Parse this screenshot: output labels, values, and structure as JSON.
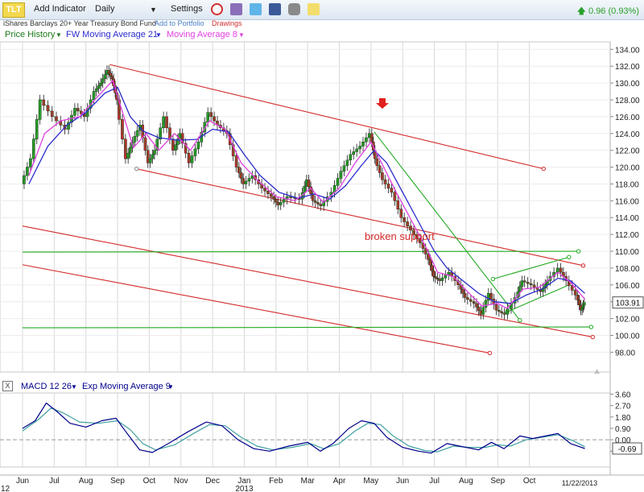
{
  "toolbar": {
    "symbol": "TLT",
    "add_indicator": "Add Indicator",
    "interval": "Daily",
    "settings": "Settings",
    "icons": [
      "alarm-clock-icon",
      "book-icon",
      "twitter-icon",
      "facebook-icon",
      "camera-icon",
      "note-icon"
    ],
    "change_text": "0.96 (0.93%)",
    "change_color": "#2aa02a"
  },
  "subbar": {
    "fund_name": "iShares Barclays 20+ Year Treasury Bond Fund",
    "add_to_portfolio": "Add to Portfolio",
    "drawings": "Drawings"
  },
  "legend": {
    "price_history": "Price History",
    "ma21": "FW Moving Average 21",
    "ma8": "Moving Average 8"
  },
  "macd_legend": {
    "macd": "MACD 12 26",
    "signal": "Exp Moving Average 9",
    "close_symbol": "X"
  },
  "chart_data": {
    "type": "line",
    "price_axis": {
      "ylim": [
        97,
        135
      ],
      "ticks": [
        98,
        100,
        102,
        104,
        106,
        108,
        110,
        112,
        114,
        116,
        118,
        120,
        122,
        124,
        126,
        128,
        130,
        132,
        134
      ]
    },
    "tick_labels": [
      "98.00",
      "100.00",
      "102.00",
      "104.00",
      "106.00",
      "108.00",
      "110.00",
      "112.00",
      "114.00",
      "116.00",
      "118.00",
      "120.00",
      "122.00",
      "124.00",
      "126.00",
      "128.00",
      "130.00",
      "132.00",
      "134.00"
    ],
    "last_price": "103.91",
    "months": [
      "Jun",
      "Jul",
      "Aug",
      "Sep",
      "Oct",
      "Nov",
      "Dec",
      "Jan",
      "Feb",
      "Mar",
      "Apr",
      "May",
      "Jun",
      "Jul",
      "Aug",
      "Sep",
      "Oct"
    ],
    "year_label": "2013",
    "left_edge_label": "12",
    "end_date": "11/22/2013",
    "annotation": "broken support",
    "price_series": [
      {
        "x": 0,
        "y": 118
      },
      {
        "x": 0.3,
        "y": 121
      },
      {
        "x": 0.6,
        "y": 128
      },
      {
        "x": 1,
        "y": 126
      },
      {
        "x": 1.4,
        "y": 124.5
      },
      {
        "x": 1.7,
        "y": 127
      },
      {
        "x": 2,
        "y": 126
      },
      {
        "x": 2.3,
        "y": 129
      },
      {
        "x": 2.5,
        "y": 130
      },
      {
        "x": 2.7,
        "y": 131.5
      },
      {
        "x": 2.85,
        "y": 130.5
      },
      {
        "x": 3,
        "y": 128
      },
      {
        "x": 3.3,
        "y": 121
      },
      {
        "x": 3.5,
        "y": 123
      },
      {
        "x": 3.75,
        "y": 125
      },
      {
        "x": 4,
        "y": 120.5
      },
      {
        "x": 4.2,
        "y": 122
      },
      {
        "x": 4.5,
        "y": 126
      },
      {
        "x": 4.8,
        "y": 122
      },
      {
        "x": 5,
        "y": 124
      },
      {
        "x": 5.3,
        "y": 120.5
      },
      {
        "x": 5.6,
        "y": 123
      },
      {
        "x": 5.9,
        "y": 126.5
      },
      {
        "x": 6.2,
        "y": 125
      },
      {
        "x": 6.5,
        "y": 124
      },
      {
        "x": 6.8,
        "y": 120
      },
      {
        "x": 7,
        "y": 118
      },
      {
        "x": 7.3,
        "y": 119
      },
      {
        "x": 7.6,
        "y": 117.5
      },
      {
        "x": 7.9,
        "y": 116.5
      },
      {
        "x": 8.1,
        "y": 115.5
      },
      {
        "x": 8.4,
        "y": 116.5
      },
      {
        "x": 8.8,
        "y": 116.2
      },
      {
        "x": 9,
        "y": 118.5
      },
      {
        "x": 9.2,
        "y": 116
      },
      {
        "x": 9.45,
        "y": 115.4
      },
      {
        "x": 9.8,
        "y": 117
      },
      {
        "x": 10.1,
        "y": 119.5
      },
      {
        "x": 10.4,
        "y": 121.5
      },
      {
        "x": 10.7,
        "y": 122.5
      },
      {
        "x": 11,
        "y": 124
      },
      {
        "x": 11.15,
        "y": 121
      },
      {
        "x": 11.4,
        "y": 118.5
      },
      {
        "x": 11.7,
        "y": 117
      },
      {
        "x": 12,
        "y": 114
      },
      {
        "x": 12.3,
        "y": 112.5
      },
      {
        "x": 12.6,
        "y": 111
      },
      {
        "x": 12.85,
        "y": 109
      },
      {
        "x": 13,
        "y": 107
      },
      {
        "x": 13.2,
        "y": 106.5
      },
      {
        "x": 13.5,
        "y": 107.5
      },
      {
        "x": 13.8,
        "y": 106
      },
      {
        "x": 14,
        "y": 104.5
      },
      {
        "x": 14.3,
        "y": 103.8
      },
      {
        "x": 14.5,
        "y": 102.5
      },
      {
        "x": 14.75,
        "y": 105
      },
      {
        "x": 15,
        "y": 103
      },
      {
        "x": 15.25,
        "y": 102.5
      },
      {
        "x": 15.6,
        "y": 104.5
      },
      {
        "x": 15.8,
        "y": 106.5
      },
      {
        "x": 16.1,
        "y": 106
      },
      {
        "x": 16.4,
        "y": 105.2
      },
      {
        "x": 16.6,
        "y": 106.5
      },
      {
        "x": 16.95,
        "y": 108
      },
      {
        "x": 17.2,
        "y": 106.5
      },
      {
        "x": 17.5,
        "y": 104.8
      },
      {
        "x": 17.65,
        "y": 103
      },
      {
        "x": 17.75,
        "y": 103.9
      }
    ],
    "ma8_series": [
      {
        "x": 0.2,
        "y": 119
      },
      {
        "x": 0.7,
        "y": 124
      },
      {
        "x": 1.2,
        "y": 125.5
      },
      {
        "x": 1.8,
        "y": 126
      },
      {
        "x": 2.4,
        "y": 128.5
      },
      {
        "x": 2.85,
        "y": 130.3
      },
      {
        "x": 3.2,
        "y": 126
      },
      {
        "x": 3.5,
        "y": 122.3
      },
      {
        "x": 3.9,
        "y": 124
      },
      {
        "x": 4.3,
        "y": 122
      },
      {
        "x": 4.8,
        "y": 124
      },
      {
        "x": 5.3,
        "y": 122
      },
      {
        "x": 5.9,
        "y": 125.5
      },
      {
        "x": 6.4,
        "y": 124.5
      },
      {
        "x": 6.9,
        "y": 120.5
      },
      {
        "x": 7.4,
        "y": 118.5
      },
      {
        "x": 8,
        "y": 116.5
      },
      {
        "x": 8.6,
        "y": 116
      },
      {
        "x": 9.1,
        "y": 117.5
      },
      {
        "x": 9.5,
        "y": 115.8
      },
      {
        "x": 10,
        "y": 117.5
      },
      {
        "x": 10.5,
        "y": 120.5
      },
      {
        "x": 11,
        "y": 123
      },
      {
        "x": 11.4,
        "y": 120
      },
      {
        "x": 11.8,
        "y": 117
      },
      {
        "x": 12.3,
        "y": 113.5
      },
      {
        "x": 12.8,
        "y": 110
      },
      {
        "x": 13.1,
        "y": 107.5
      },
      {
        "x": 13.6,
        "y": 107
      },
      {
        "x": 14.1,
        "y": 105
      },
      {
        "x": 14.5,
        "y": 103.5
      },
      {
        "x": 15,
        "y": 103.8
      },
      {
        "x": 15.3,
        "y": 103.2
      },
      {
        "x": 15.8,
        "y": 105.5
      },
      {
        "x": 16.3,
        "y": 105.7
      },
      {
        "x": 16.9,
        "y": 107.5
      },
      {
        "x": 17.3,
        "y": 106.3
      },
      {
        "x": 17.75,
        "y": 104.3
      }
    ],
    "ma21_series": [
      {
        "x": 0.2,
        "y": 118
      },
      {
        "x": 0.8,
        "y": 122.5
      },
      {
        "x": 1.4,
        "y": 125
      },
      {
        "x": 2,
        "y": 126.5
      },
      {
        "x": 2.6,
        "y": 128.8
      },
      {
        "x": 3,
        "y": 129.5
      },
      {
        "x": 3.4,
        "y": 126
      },
      {
        "x": 3.8,
        "y": 124.3
      },
      {
        "x": 4.3,
        "y": 123.5
      },
      {
        "x": 4.9,
        "y": 123.2
      },
      {
        "x": 5.5,
        "y": 123.3
      },
      {
        "x": 6,
        "y": 124.5
      },
      {
        "x": 6.5,
        "y": 124.2
      },
      {
        "x": 7,
        "y": 121.5
      },
      {
        "x": 7.5,
        "y": 119
      },
      {
        "x": 8.1,
        "y": 117
      },
      {
        "x": 8.7,
        "y": 116.3
      },
      {
        "x": 9.2,
        "y": 116.8
      },
      {
        "x": 9.7,
        "y": 116.2
      },
      {
        "x": 10.2,
        "y": 117.8
      },
      {
        "x": 10.7,
        "y": 120.2
      },
      {
        "x": 11.1,
        "y": 122
      },
      {
        "x": 11.5,
        "y": 120.5
      },
      {
        "x": 12,
        "y": 117
      },
      {
        "x": 12.5,
        "y": 113.5
      },
      {
        "x": 13,
        "y": 110
      },
      {
        "x": 13.4,
        "y": 108
      },
      {
        "x": 13.9,
        "y": 106.5
      },
      {
        "x": 14.4,
        "y": 105
      },
      {
        "x": 14.9,
        "y": 104
      },
      {
        "x": 15.4,
        "y": 103.8
      },
      {
        "x": 15.9,
        "y": 104.8
      },
      {
        "x": 16.4,
        "y": 105.5
      },
      {
        "x": 16.9,
        "y": 106.8
      },
      {
        "x": 17.3,
        "y": 106.5
      },
      {
        "x": 17.75,
        "y": 105
      }
    ],
    "trendlines": [
      {
        "color": "#d42a2a",
        "x1": 2.75,
        "y1": 132.2,
        "x2": 16.45,
        "y2": 119.8,
        "end_marker": true
      },
      {
        "color": "#d42a2a",
        "x1": 3.6,
        "y1": 119.8,
        "x2": 17.7,
        "y2": 108.3,
        "end_marker": true
      },
      {
        "color": "#d42a2a",
        "x1": 0,
        "y1": 113,
        "x2": 18,
        "y2": 99.8,
        "end_marker": true
      },
      {
        "color": "#d42a2a",
        "x1": 0,
        "y1": 108.4,
        "x2": 14.75,
        "y2": 97.9,
        "end_marker": true
      },
      {
        "color": "#22aa22",
        "x1": 0,
        "y1": 109.9,
        "x2": 17.55,
        "y2": 110,
        "end_marker": true
      },
      {
        "color": "#22aa22",
        "x1": 0,
        "y1": 100.9,
        "x2": 17.95,
        "y2": 101,
        "end_marker": true
      },
      {
        "color": "#22aa22",
        "x1": 11.1,
        "y1": 124.2,
        "x2": 15.7,
        "y2": 101.8,
        "end_marker": true
      },
      {
        "color": "#22aa22",
        "x1": 14.85,
        "y1": 106.7,
        "x2": 17.25,
        "y2": 109.3,
        "end_marker": true
      },
      {
        "color": "#22aa22",
        "x1": 15.3,
        "y1": 102.8,
        "x2": 17.25,
        "y2": 106,
        "end_marker": false
      }
    ],
    "macd_axis": {
      "ylim": [
        -1.1,
        3.8
      ],
      "ticks": [
        -0.9,
        0.0,
        0.9,
        1.8,
        2.7,
        3.6
      ]
    },
    "macd_tick_labels": [
      "-0.90",
      "0.00",
      "0.90",
      "1.80",
      "2.70",
      "3.60"
    ],
    "macd_last": "-0.69",
    "macd_series": [
      {
        "x": 0,
        "y": 0.9
      },
      {
        "x": 0.4,
        "y": 1.5
      },
      {
        "x": 0.75,
        "y": 2.9
      },
      {
        "x": 1.1,
        "y": 2.2
      },
      {
        "x": 1.5,
        "y": 1.3
      },
      {
        "x": 2,
        "y": 1.0
      },
      {
        "x": 2.5,
        "y": 1.5
      },
      {
        "x": 2.95,
        "y": 1.7
      },
      {
        "x": 3.3,
        "y": 0.5
      },
      {
        "x": 3.7,
        "y": -0.8
      },
      {
        "x": 4.1,
        "y": -1.0
      },
      {
        "x": 4.6,
        "y": -0.3
      },
      {
        "x": 5.2,
        "y": 0.6
      },
      {
        "x": 5.8,
        "y": 1.4
      },
      {
        "x": 6.3,
        "y": 1.1
      },
      {
        "x": 6.8,
        "y": 0.0
      },
      {
        "x": 7.3,
        "y": -0.7
      },
      {
        "x": 7.8,
        "y": -0.9
      },
      {
        "x": 8.4,
        "y": -0.5
      },
      {
        "x": 9,
        "y": -0.2
      },
      {
        "x": 9.4,
        "y": -0.9
      },
      {
        "x": 9.8,
        "y": -0.3
      },
      {
        "x": 10.3,
        "y": 0.9
      },
      {
        "x": 10.7,
        "y": 1.5
      },
      {
        "x": 11.1,
        "y": 1.3
      },
      {
        "x": 11.5,
        "y": 0.2
      },
      {
        "x": 12,
        "y": -0.6
      },
      {
        "x": 12.5,
        "y": -0.9
      },
      {
        "x": 12.9,
        "y": -1.05
      },
      {
        "x": 13.4,
        "y": -0.3
      },
      {
        "x": 13.8,
        "y": -0.5
      },
      {
        "x": 14.4,
        "y": -0.8
      },
      {
        "x": 14.8,
        "y": -0.2
      },
      {
        "x": 15.2,
        "y": -0.7
      },
      {
        "x": 15.7,
        "y": 0.3
      },
      {
        "x": 16.1,
        "y": 0.1
      },
      {
        "x": 16.9,
        "y": 0.5
      },
      {
        "x": 17.3,
        "y": -0.3
      },
      {
        "x": 17.75,
        "y": -0.69
      }
    ],
    "signal_series": [
      {
        "x": 0,
        "y": 0.7
      },
      {
        "x": 0.5,
        "y": 1.6
      },
      {
        "x": 0.9,
        "y": 2.5
      },
      {
        "x": 1.3,
        "y": 2.1
      },
      {
        "x": 1.8,
        "y": 1.4
      },
      {
        "x": 2.4,
        "y": 1.3
      },
      {
        "x": 3,
        "y": 1.5
      },
      {
        "x": 3.4,
        "y": 0.8
      },
      {
        "x": 3.8,
        "y": -0.3
      },
      {
        "x": 4.2,
        "y": -0.8
      },
      {
        "x": 4.8,
        "y": -0.4
      },
      {
        "x": 5.4,
        "y": 0.5
      },
      {
        "x": 5.9,
        "y": 1.2
      },
      {
        "x": 6.4,
        "y": 1.1
      },
      {
        "x": 6.9,
        "y": 0.2
      },
      {
        "x": 7.4,
        "y": -0.5
      },
      {
        "x": 7.9,
        "y": -0.8
      },
      {
        "x": 8.5,
        "y": -0.6
      },
      {
        "x": 9.1,
        "y": -0.3
      },
      {
        "x": 9.5,
        "y": -0.7
      },
      {
        "x": 10,
        "y": -0.3
      },
      {
        "x": 10.5,
        "y": 0.7
      },
      {
        "x": 10.9,
        "y": 1.3
      },
      {
        "x": 11.3,
        "y": 1.2
      },
      {
        "x": 11.7,
        "y": 0.3
      },
      {
        "x": 12.2,
        "y": -0.5
      },
      {
        "x": 12.7,
        "y": -0.85
      },
      {
        "x": 13.1,
        "y": -0.95
      },
      {
        "x": 13.6,
        "y": -0.5
      },
      {
        "x": 14.1,
        "y": -0.6
      },
      {
        "x": 14.6,
        "y": -0.6
      },
      {
        "x": 15,
        "y": -0.4
      },
      {
        "x": 15.4,
        "y": -0.5
      },
      {
        "x": 15.9,
        "y": 0.0
      },
      {
        "x": 16.4,
        "y": 0.2
      },
      {
        "x": 16.9,
        "y": 0.4
      },
      {
        "x": 17.4,
        "y": -0.1
      },
      {
        "x": 17.75,
        "y": -0.55
      }
    ],
    "colors": {
      "price": "#1a7a1a",
      "ma21": "#2a2acc",
      "ma8": "#e040e0",
      "macd": "#00008b",
      "signal": "#40a0a0",
      "grid": "#d8d8d8"
    }
  }
}
